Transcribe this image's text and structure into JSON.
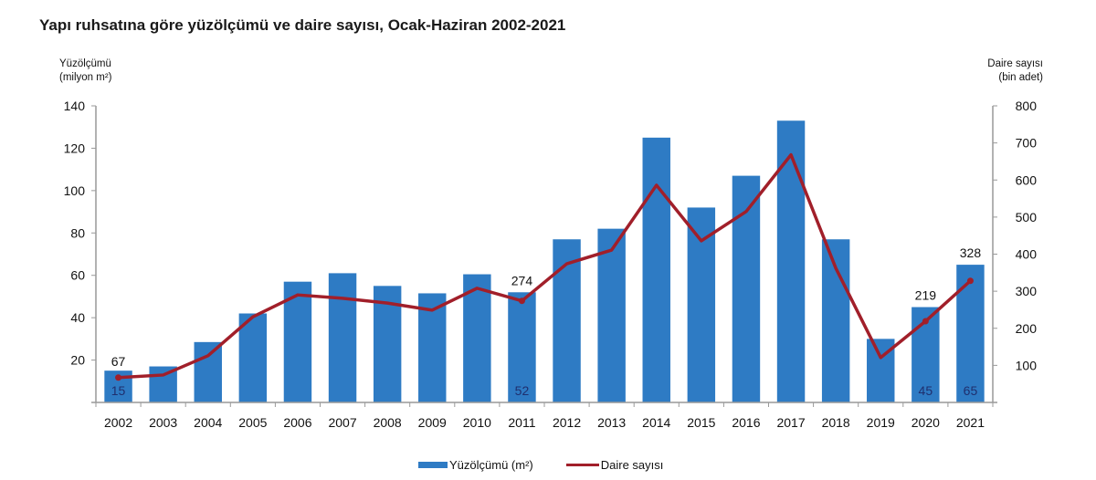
{
  "title": "Yapı ruhsatına göre yüzölçümü ve daire sayısı, Ocak-Haziran 2002-2021",
  "left_axis_label": {
    "line1": "Yüzölçümü",
    "line2": "(milyon m²)"
  },
  "right_axis_label": {
    "line1": "Daire sayısı",
    "line2": "(bin adet)"
  },
  "legend": {
    "bar_label": "Yüzölçümü (m²)",
    "line_label": "Daire sayısı"
  },
  "colors": {
    "bar": "#2e7bc4",
    "line": "#a11f2a",
    "axis": "#999999",
    "bar_label": "#1f2f6e"
  },
  "chart_data": {
    "type": "bar+line",
    "title": "Yapı ruhsatına göre yüzölçümü ve daire sayısı, Ocak-Haziran 2002-2021",
    "categories": [
      "2002",
      "2003",
      "2004",
      "2005",
      "2006",
      "2007",
      "2008",
      "2009",
      "2010",
      "2011",
      "2012",
      "2013",
      "2014",
      "2015",
      "2016",
      "2017",
      "2018",
      "2019",
      "2020",
      "2021"
    ],
    "series": [
      {
        "name": "Yüzölçümü (m²)",
        "type": "bar",
        "axis": "left",
        "values": [
          15,
          17,
          28.5,
          42,
          57,
          61,
          55,
          51.5,
          60.5,
          52,
          77,
          82,
          125,
          92,
          107,
          133,
          77,
          30,
          45,
          65
        ]
      },
      {
        "name": "Daire sayısı",
        "type": "line",
        "axis": "right",
        "values": [
          67,
          74,
          126,
          231,
          290,
          281,
          268,
          249,
          308,
          274,
          374,
          411,
          586,
          436,
          515,
          668,
          362,
          121,
          219,
          328
        ]
      }
    ],
    "data_labels": {
      "bar": {
        "2002": "15",
        "2011": "52",
        "2020": "45",
        "2021": "65"
      },
      "line": {
        "2002": "67",
        "2011": "274",
        "2020": "219",
        "2021": "328"
      }
    },
    "left_axis": {
      "label": "Yüzölçümü (milyon m²)",
      "ylim": [
        0,
        140
      ],
      "ticks": [
        20,
        40,
        60,
        80,
        100,
        120,
        140
      ]
    },
    "right_axis": {
      "label": "Daire sayısı (bin adet)",
      "ylim": [
        0,
        800
      ],
      "ticks": [
        100,
        200,
        300,
        400,
        500,
        600,
        700,
        800
      ]
    },
    "grid": false,
    "legend_position": "bottom"
  }
}
